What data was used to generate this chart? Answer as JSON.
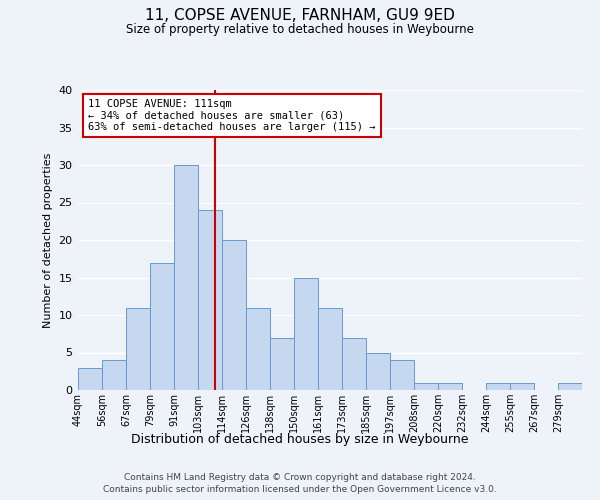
{
  "title": "11, COPSE AVENUE, FARNHAM, GU9 9ED",
  "subtitle": "Size of property relative to detached houses in Weybourne",
  "xlabel": "Distribution of detached houses by size in Weybourne",
  "ylabel": "Number of detached properties",
  "bin_labels": [
    "44sqm",
    "56sqm",
    "67sqm",
    "79sqm",
    "91sqm",
    "103sqm",
    "114sqm",
    "126sqm",
    "138sqm",
    "150sqm",
    "161sqm",
    "173sqm",
    "185sqm",
    "197sqm",
    "208sqm",
    "220sqm",
    "232sqm",
    "244sqm",
    "255sqm",
    "267sqm",
    "279sqm"
  ],
  "bin_edges": [
    44,
    56,
    67,
    79,
    91,
    103,
    114,
    126,
    138,
    150,
    161,
    173,
    185,
    197,
    208,
    220,
    232,
    244,
    255,
    267,
    279,
    291
  ],
  "counts": [
    3,
    4,
    11,
    17,
    30,
    24,
    20,
    11,
    7,
    15,
    11,
    7,
    5,
    4,
    1,
    1,
    0,
    1,
    1,
    0,
    1
  ],
  "bar_color": "#c5d8f0",
  "bar_edge_color": "#6699cc",
  "vline_x": 111,
  "vline_color": "#cc0000",
  "annotation_text": "11 COPSE AVENUE: 111sqm\n← 34% of detached houses are smaller (63)\n63% of semi-detached houses are larger (115) →",
  "annotation_box_color": "#ffffff",
  "annotation_box_edge_color": "#cc0000",
  "ylim": [
    0,
    40
  ],
  "yticks": [
    0,
    5,
    10,
    15,
    20,
    25,
    30,
    35,
    40
  ],
  "background_color": "#eef2f9",
  "grid_color": "#ffffff",
  "footer_line1": "Contains HM Land Registry data © Crown copyright and database right 2024.",
  "footer_line2": "Contains public sector information licensed under the Open Government Licence v3.0."
}
